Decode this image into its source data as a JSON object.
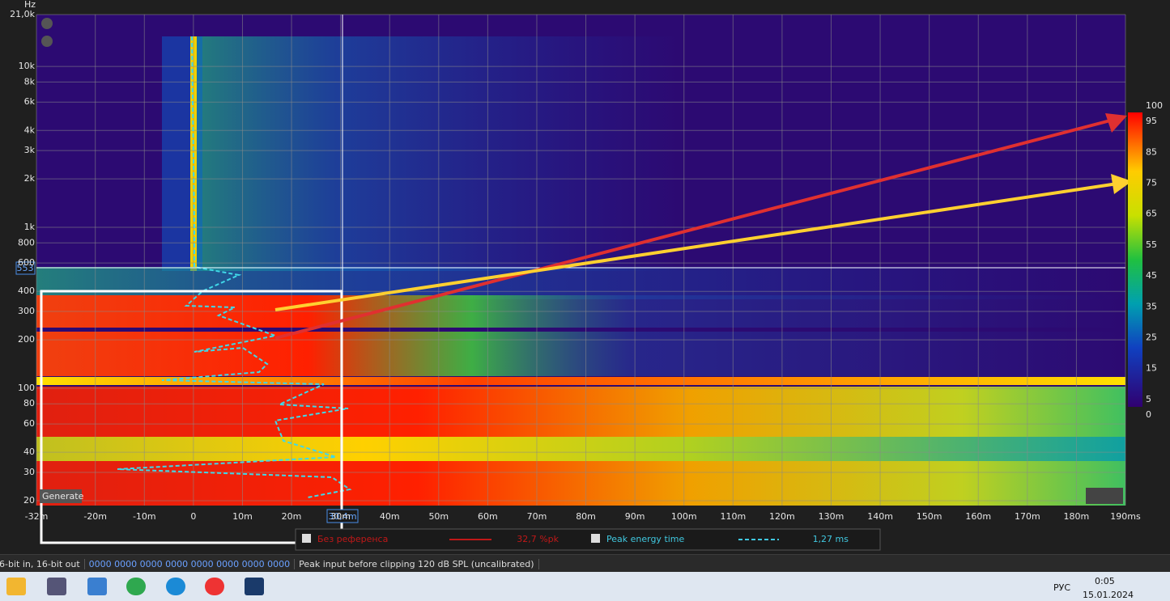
{
  "plot": {
    "y_unit": "Hz",
    "generate": "Generate",
    "cursor_freq": "553",
    "cursor_time": "30,4m",
    "yticks": [
      {
        "value": 20,
        "label": "20"
      },
      {
        "value": 30,
        "label": "30"
      },
      {
        "value": 40,
        "label": "40"
      },
      {
        "value": 60,
        "label": "60"
      },
      {
        "value": 80,
        "label": "80"
      },
      {
        "value": 100,
        "label": "100"
      },
      {
        "value": 200,
        "label": "200"
      },
      {
        "value": 300,
        "label": "300"
      },
      {
        "value": 400,
        "label": "400"
      },
      {
        "value": 600,
        "label": "600"
      },
      {
        "value": 800,
        "label": "800"
      },
      {
        "value": 1000,
        "label": "1k"
      },
      {
        "value": 2000,
        "label": "2k"
      },
      {
        "value": 3000,
        "label": "3k"
      },
      {
        "value": 4000,
        "label": "4k"
      },
      {
        "value": 6000,
        "label": "6k"
      },
      {
        "value": 8000,
        "label": "8k"
      },
      {
        "value": 10000,
        "label": "10k"
      },
      {
        "value": 21000,
        "label": "21,0k"
      }
    ],
    "xticks": [
      {
        "value": -32,
        "label": "-32m"
      },
      {
        "value": -20,
        "label": "-20m"
      },
      {
        "value": -10,
        "label": "-10m"
      },
      0,
      {
        "value": 10,
        "label": "10m"
      },
      {
        "value": 20,
        "label": "20m"
      },
      {
        "value": 30,
        "label": "30m"
      },
      {
        "value": 40,
        "label": "40m"
      },
      {
        "value": 50,
        "label": "50m"
      },
      {
        "value": 60,
        "label": "60m"
      },
      {
        "value": 70,
        "label": "70m"
      },
      {
        "value": 80,
        "label": "80m"
      },
      {
        "value": 90,
        "label": "90m"
      },
      {
        "value": 100,
        "label": "100m"
      },
      {
        "value": 110,
        "label": "110m"
      },
      {
        "value": 120,
        "label": "120m"
      },
      {
        "value": 130,
        "label": "130m"
      },
      {
        "value": 140,
        "label": "140m"
      },
      {
        "value": 150,
        "label": "150m"
      },
      {
        "value": 160,
        "label": "160m"
      },
      {
        "value": 170,
        "label": "170m"
      },
      {
        "value": 180,
        "label": "180m"
      },
      {
        "value": 190,
        "label": "190ms"
      }
    ],
    "colorbar_ticks": [
      100,
      95,
      85,
      75,
      65,
      55,
      45,
      35,
      25,
      15,
      5,
      0
    ]
  },
  "legend": [
    {
      "name": "Без референса",
      "value": "32,7 %pk"
    },
    {
      "name": "Peak energy time",
      "value": "1,27 ms"
    }
  ],
  "status": {
    "format": "6-bit in, 16-bit out",
    "meter": "0000 0000  0000 0000  0000 0000  0000 0000",
    "clip": "Peak input before clipping 120 dB SPL (uncalibrated)"
  },
  "taskbar": {
    "lang": "РУС",
    "time": "0:05",
    "date": "15.01.2024"
  }
}
